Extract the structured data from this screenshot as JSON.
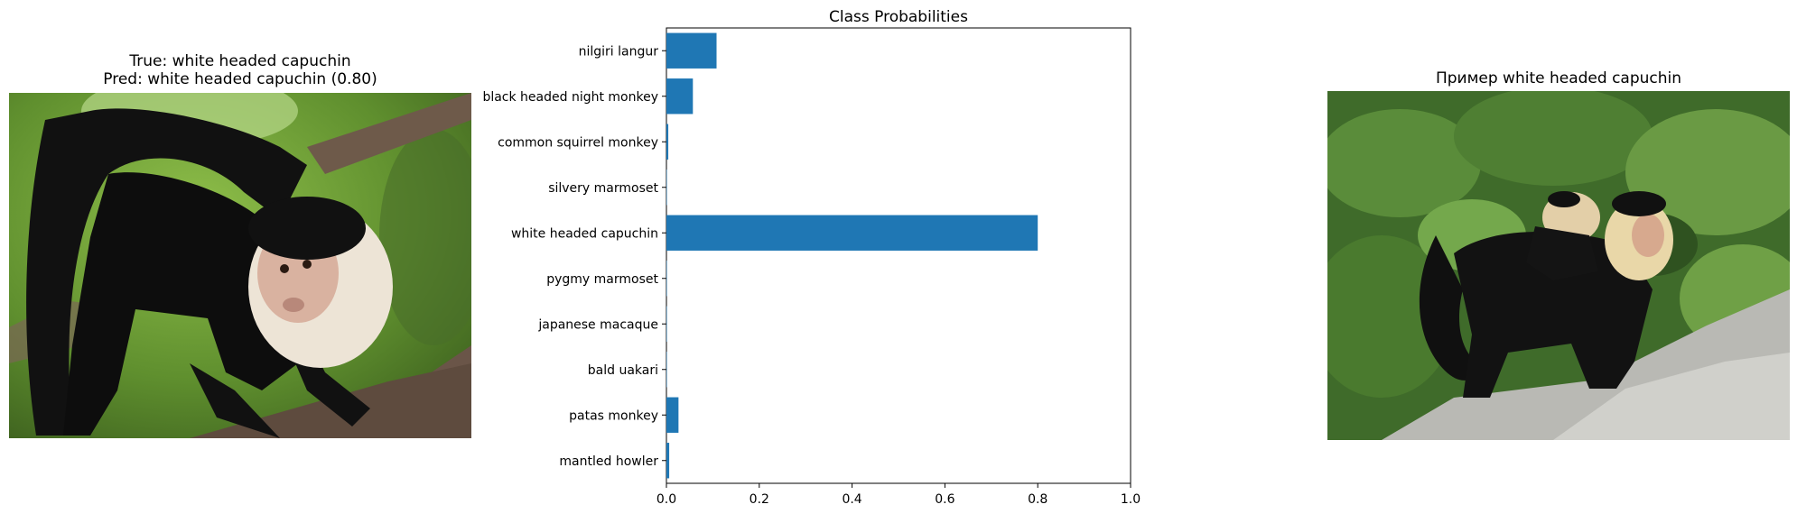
{
  "left_panel": {
    "title_line1": "True: white headed capuchin",
    "title_line2": "Pred: white headed capuchin (0.80)"
  },
  "right_panel": {
    "title": "Пример white headed capuchin"
  },
  "chart_data": {
    "type": "bar",
    "orientation": "horizontal",
    "title": "Class Probabilities",
    "xlabel": "",
    "ylabel": "",
    "categories": [
      "mantled howler",
      "patas monkey",
      "bald uakari",
      "japanese macaque",
      "pygmy marmoset",
      "white headed capuchin",
      "silvery marmoset",
      "common squirrel monkey",
      "black headed night monkey",
      "nilgiri langur"
    ],
    "values": [
      0.006,
      0.026,
      0.001,
      0.001,
      0.001,
      0.8,
      0.001,
      0.004,
      0.057,
      0.108
    ],
    "xlim": [
      0,
      1.0
    ],
    "xticks": [
      "0.0",
      "0.2",
      "0.4",
      "0.6",
      "0.8",
      "1.0"
    ],
    "grid": false,
    "bar_color": "#1f77b4"
  }
}
